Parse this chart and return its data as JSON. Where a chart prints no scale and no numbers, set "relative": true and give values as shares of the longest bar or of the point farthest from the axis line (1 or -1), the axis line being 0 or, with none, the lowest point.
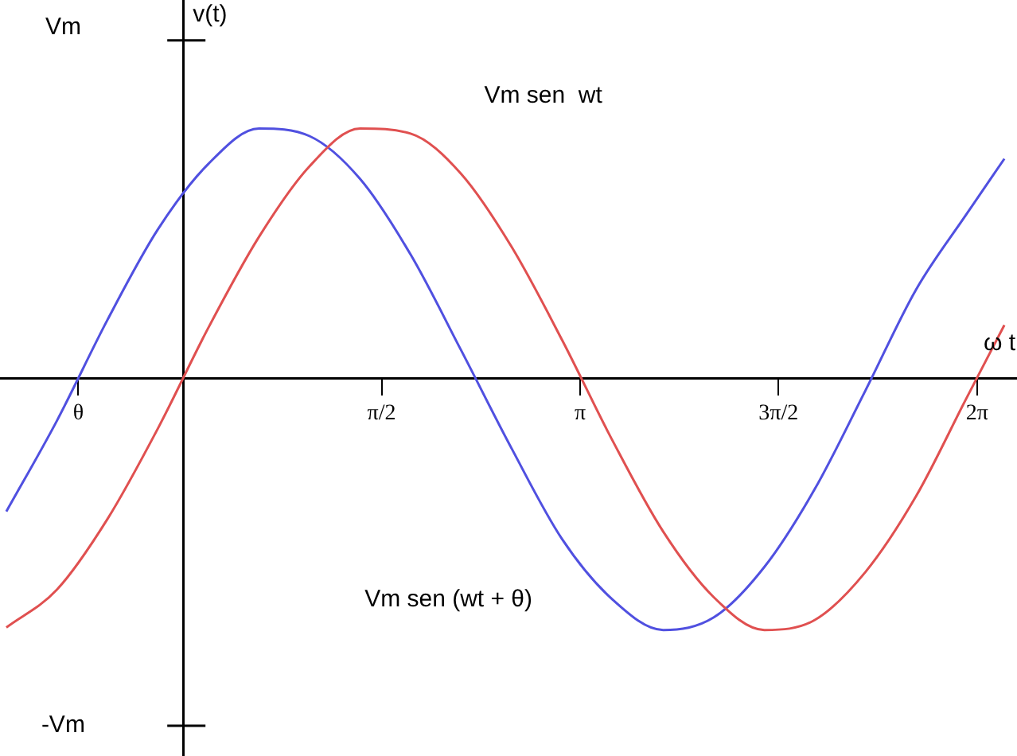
{
  "chart_data": {
    "type": "line",
    "relative": true,
    "xlabel": "ω t",
    "ylabel": "v(t)",
    "x": [
      -1.4,
      -1.0,
      -0.6,
      -0.2,
      0.2,
      0.6,
      1.0,
      1.4,
      1.8,
      2.2,
      2.6,
      3.0,
      3.4,
      3.8,
      4.2,
      4.6,
      5.0,
      5.4,
      5.8,
      6.2,
      6.5
    ],
    "series": [
      {
        "color": "#e05050",
        "values": [
          -0.99,
          -0.84,
          -0.56,
          -0.2,
          0.2,
          0.56,
          0.84,
          0.99,
          0.97,
          0.81,
          0.52,
          0.15,
          -0.25,
          -0.61,
          -0.87,
          -1,
          -0.96,
          -0.77,
          -0.47,
          -0.08,
          0.21
        ]
      },
      {
        "color": "#5050e0",
        "values": [
          -0.53,
          -0.17,
          0.23,
          0.59,
          0.85,
          0.99,
          0.96,
          0.79,
          0.49,
          0.11,
          -0.28,
          -0.64,
          -0.88,
          -1,
          -0.95,
          -0.75,
          -0.44,
          -0.05,
          0.35,
          0.65,
          0.87
        ]
      }
    ],
    "xlim": [
      -1.45,
      6.6
    ],
    "xticks": [
      {
        "value": -0.83,
        "label": "θ"
      },
      {
        "value": 1.5708,
        "label": "π/2"
      },
      {
        "value": 3.1416,
        "label": "π"
      },
      {
        "value": 4.7124,
        "label": "3π/2"
      },
      {
        "value": 6.2832,
        "label": "2π"
      }
    ],
    "annotations": [
      "Vm",
      "-Vm",
      "Vm sen  wt",
      "Vm sen (wt + θ)"
    ]
  }
}
